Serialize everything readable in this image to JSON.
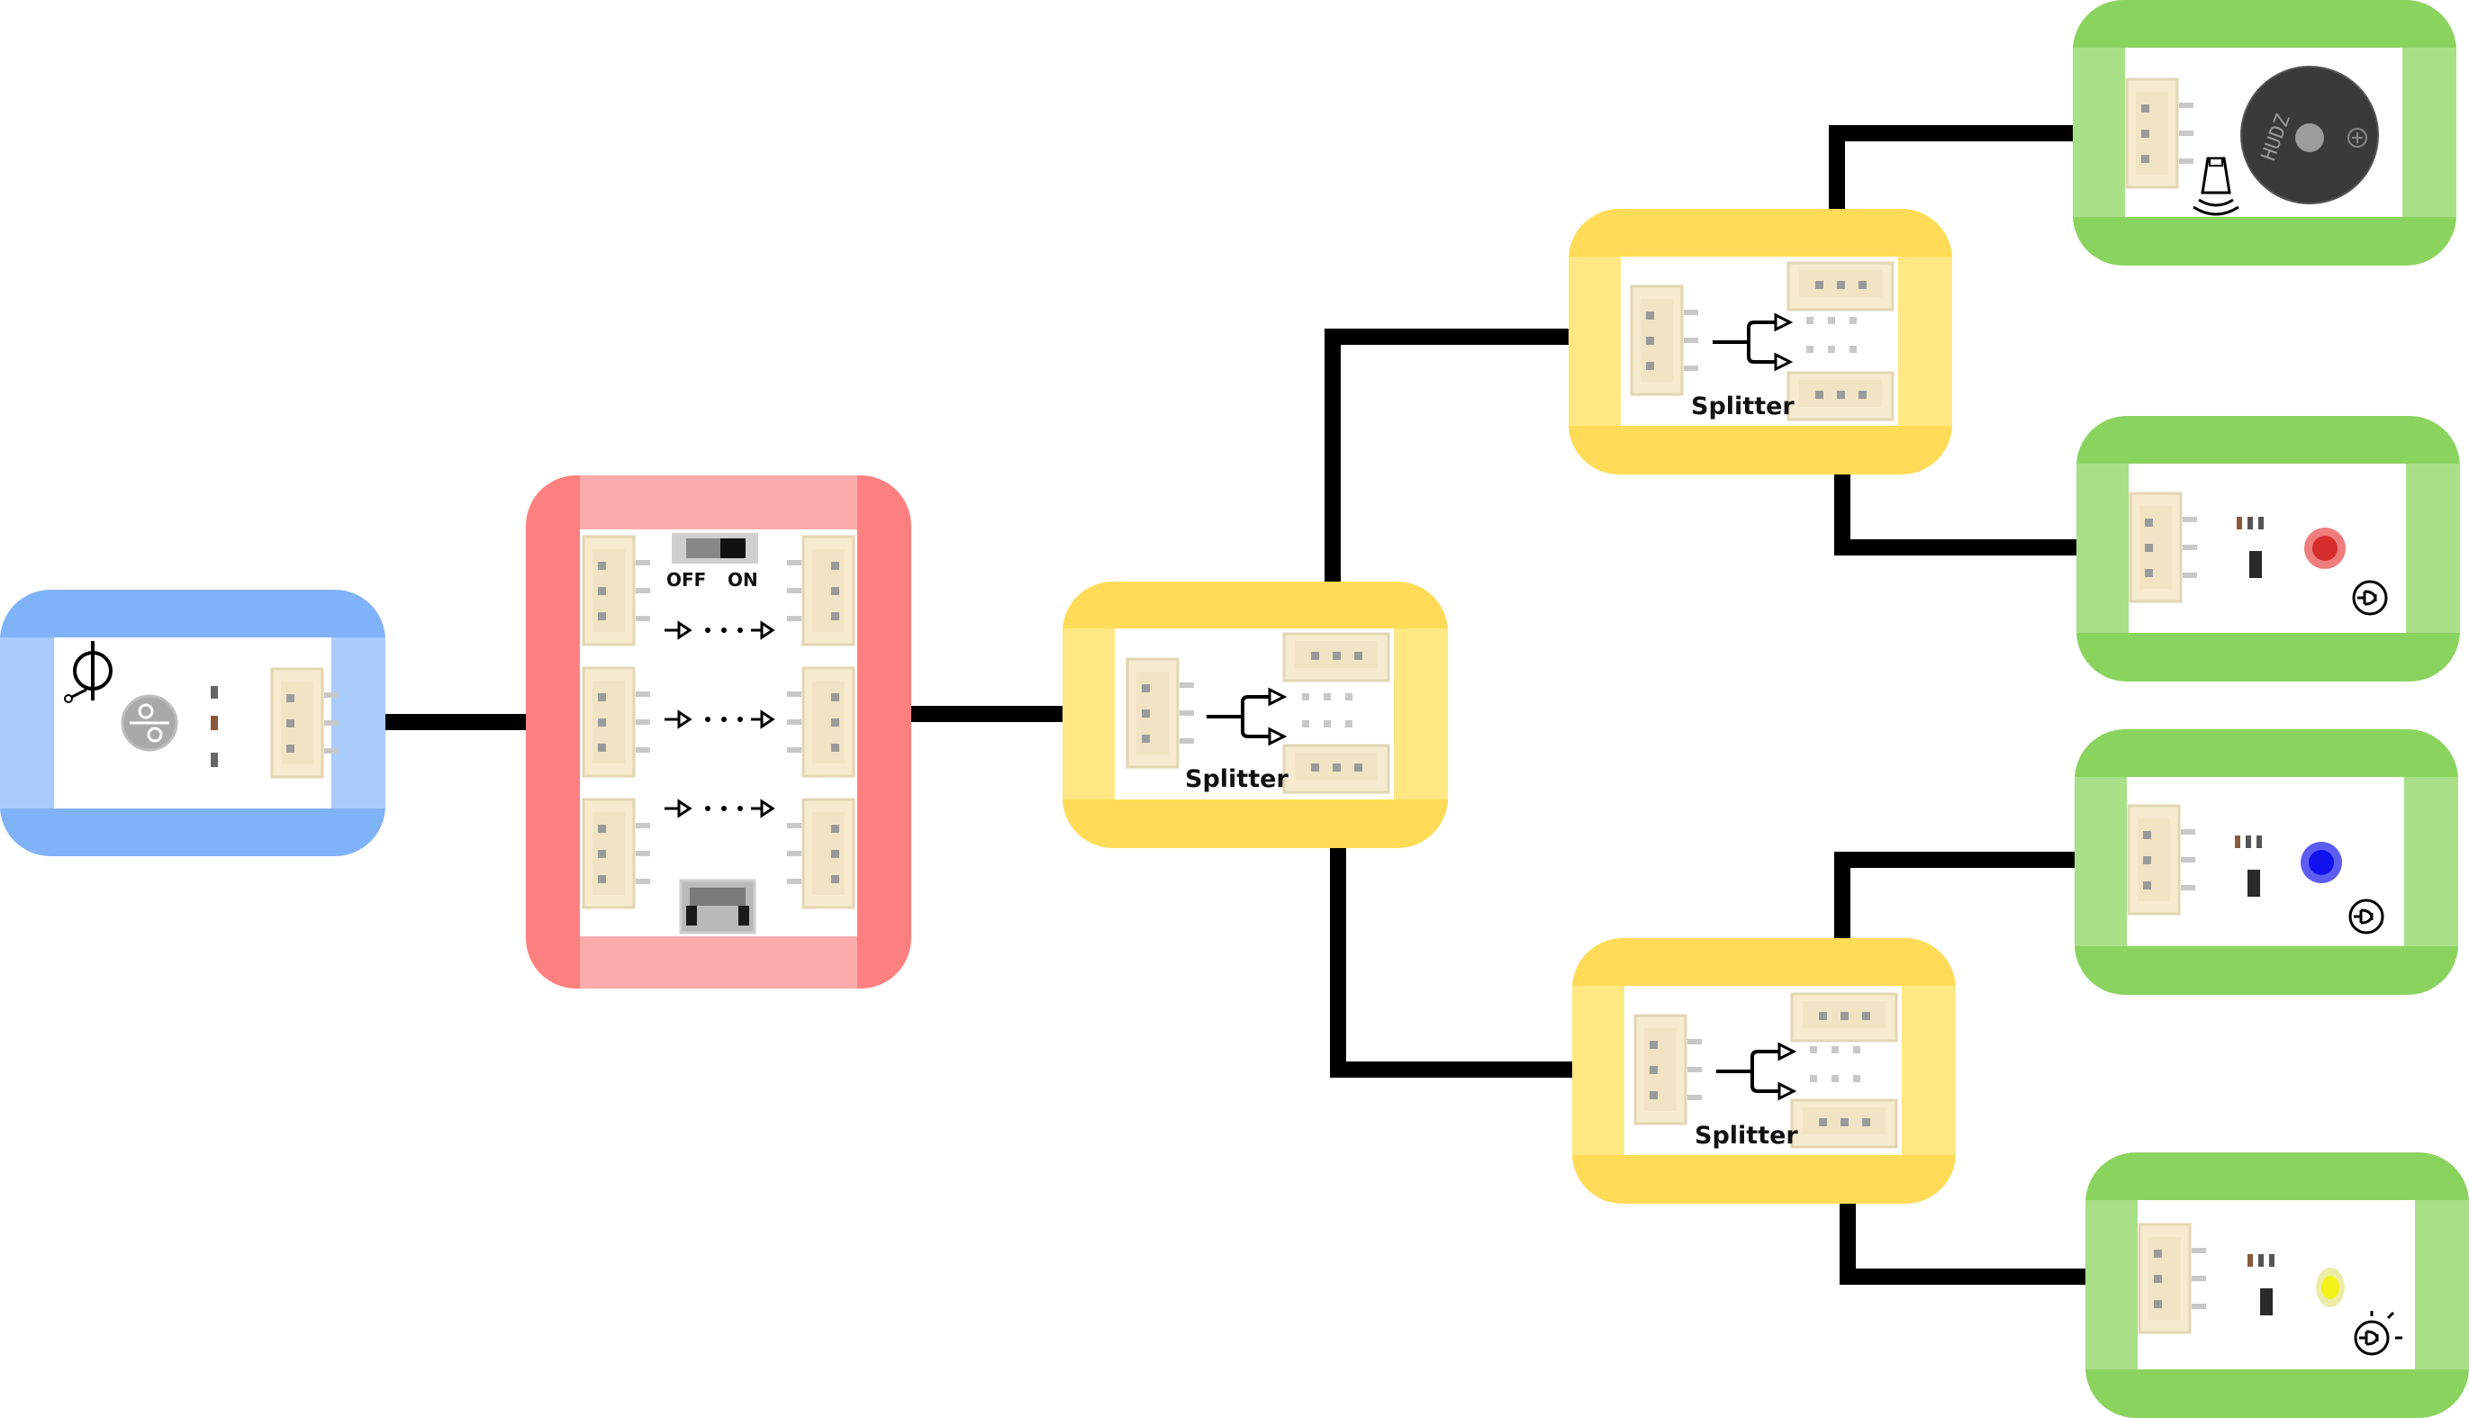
{
  "modules": {
    "input": {
      "kind": "tilt-sensor",
      "color": "#7fb2f8",
      "inner_color": "#a9ccfb"
    },
    "controller": {
      "kind": "switch-board",
      "color": "#fd8080",
      "inner_color": "#fdabab",
      "switch_off": "OFF",
      "switch_on": "ON"
    },
    "splitter_main": {
      "label": "Splitter",
      "color": "#ffdb57",
      "inner_color": "#ffe784"
    },
    "splitter_top": {
      "label": "Splitter",
      "color": "#ffdb57",
      "inner_color": "#ffe784"
    },
    "splitter_bottom": {
      "label": "Splitter",
      "color": "#ffdb57",
      "inner_color": "#ffe784"
    },
    "buzzer": {
      "kind": "buzzer",
      "color": "#8ad35f",
      "inner_color": "#a8e088"
    },
    "led_red": {
      "kind": "led",
      "led_color": "#ee4444"
    },
    "led_blue": {
      "kind": "led",
      "led_color": "#1515f0"
    },
    "led_yellow": {
      "kind": "led",
      "led_color": "#f3f31a"
    }
  },
  "wire_color": "#000000"
}
